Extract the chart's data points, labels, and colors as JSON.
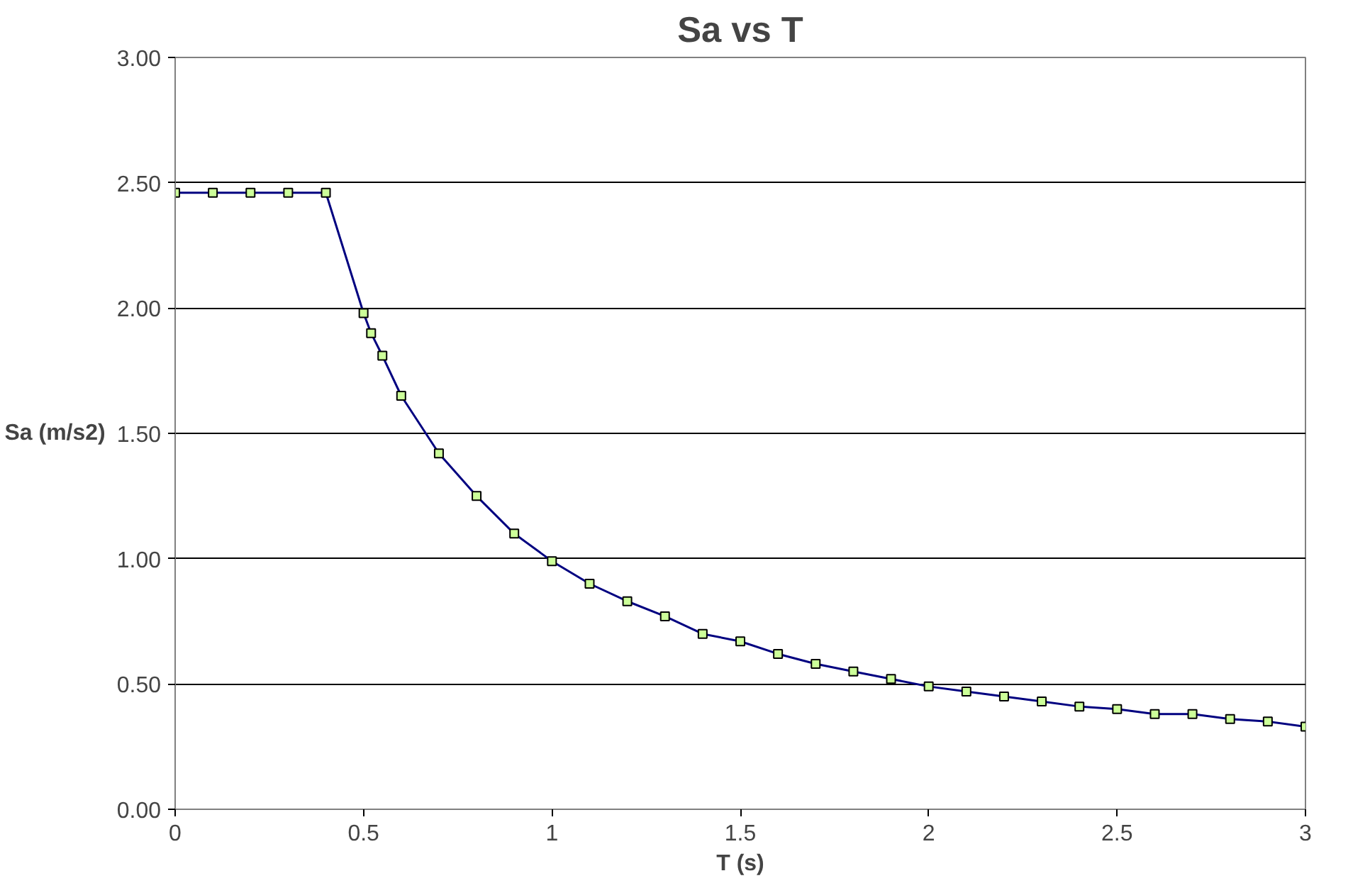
{
  "chart_data": {
    "type": "line",
    "title": "Sa vs T",
    "xlabel": "T (s)",
    "ylabel": "Sa (m/s2)",
    "x": [
      0,
      0.1,
      0.2,
      0.3,
      0.4,
      0.5,
      0.52,
      0.55,
      0.6,
      0.7,
      0.8,
      0.9,
      1.0,
      1.1,
      1.2,
      1.3,
      1.4,
      1.5,
      1.6,
      1.7,
      1.8,
      1.9,
      2.0,
      2.1,
      2.2,
      2.3,
      2.4,
      2.5,
      2.6,
      2.7,
      2.8,
      2.9,
      3.0
    ],
    "series": [
      {
        "color": "#000080",
        "values": [
          2.46,
          2.46,
          2.46,
          2.46,
          2.46,
          1.98,
          1.9,
          1.81,
          1.65,
          1.42,
          1.25,
          1.1,
          0.99,
          0.9,
          0.83,
          0.77,
          0.7,
          0.67,
          0.62,
          0.58,
          0.55,
          0.52,
          0.49,
          0.47,
          0.45,
          0.43,
          0.41,
          0.4,
          0.38,
          0.38,
          0.36,
          0.35,
          0.33
        ]
      }
    ],
    "xlim": [
      0,
      3
    ],
    "xticks": [
      0,
      0.5,
      1,
      1.5,
      2,
      2.5,
      3
    ],
    "ylim": [
      0,
      3
    ],
    "yticks": [
      {
        "value": 0,
        "label": "0.00"
      },
      {
        "value": 0.5,
        "label": "0.50"
      },
      {
        "value": 1,
        "label": "1.00"
      },
      {
        "value": 1.5,
        "label": "1.50"
      },
      {
        "value": 2,
        "label": "2.00"
      },
      {
        "value": 2.5,
        "label": "2.50"
      },
      {
        "value": 3,
        "label": "3.00"
      }
    ],
    "grid": "y",
    "marker": "square",
    "line_style": "solid"
  }
}
